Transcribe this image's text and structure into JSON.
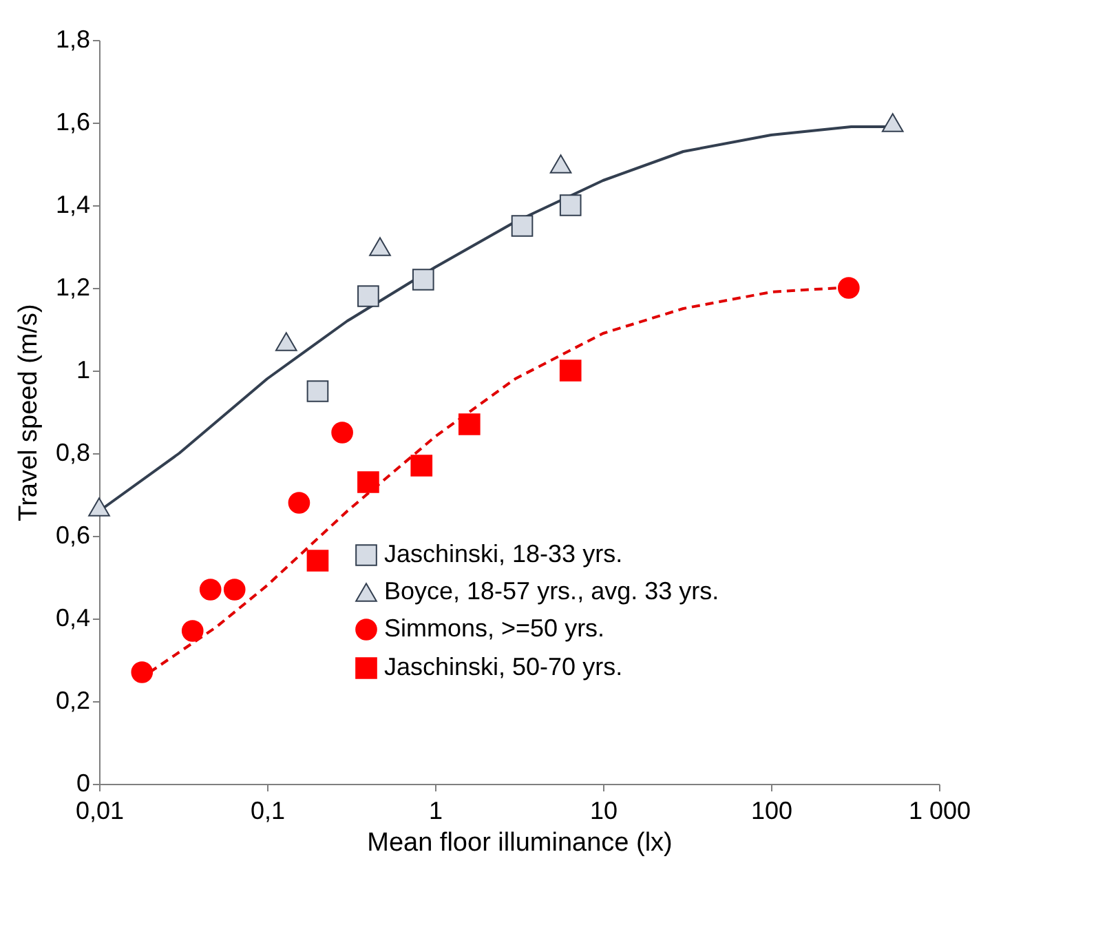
{
  "chart_data": {
    "type": "scatter",
    "xlabel": "Mean floor illuminance (lx)",
    "ylabel": "Travel speed (m/s)",
    "log": "x",
    "xlim": [
      0.01,
      1000
    ],
    "xticks": [
      {
        "value": 0.01,
        "label": "0,01"
      },
      {
        "value": 0.1,
        "label": "0,1"
      },
      1,
      10,
      100,
      {
        "value": 1000,
        "label": "1 000"
      }
    ],
    "ylim": [
      0,
      1.8
    ],
    "yticks": [
      0,
      {
        "value": 0.2,
        "label": "0,2"
      },
      {
        "value": 0.4,
        "label": "0,4"
      },
      {
        "value": 0.6,
        "label": "0,6"
      },
      {
        "value": 0.8,
        "label": "0,8"
      },
      1,
      {
        "value": 1.2,
        "label": "1,2"
      },
      {
        "value": 1.4,
        "label": "1,4"
      },
      {
        "value": 1.6,
        "label": "1,6"
      },
      {
        "value": 1.8,
        "label": "1,8"
      }
    ],
    "grid": false,
    "legend": "bottom",
    "series": [
      {
        "type": "line",
        "color": "#333f50",
        "line_style": "solid",
        "marker": "none",
        "x": [
          0.01,
          0.03,
          0.1,
          0.3,
          1,
          3,
          10,
          30,
          100,
          300,
          550
        ],
        "values": [
          0.66,
          0.8,
          0.98,
          1.12,
          1.25,
          1.36,
          1.46,
          1.53,
          1.57,
          1.59,
          1.59
        ]
      },
      {
        "type": "line",
        "color": "#e00000",
        "line_style": "dashed",
        "marker": "none",
        "x": [
          0.02,
          0.05,
          0.1,
          0.3,
          1,
          3,
          10,
          30,
          100,
          250
        ],
        "values": [
          0.27,
          0.38,
          0.48,
          0.66,
          0.84,
          0.98,
          1.09,
          1.15,
          1.19,
          1.2
        ]
      },
      {
        "name": "Jaschinski, 18-33 yrs.",
        "color": "#d6dce5",
        "marker": "square",
        "x": [
          0.2,
          0.4,
          0.85,
          3.3,
          6.4
        ],
        "values": [
          0.95,
          1.18,
          1.22,
          1.35,
          1.4
        ]
      },
      {
        "name": "Boyce, 18-57 yrs., avg. 33 yrs.",
        "color": "#d6dce5",
        "marker": "triangle",
        "x": [
          0.01,
          0.13,
          0.47,
          5.6,
          530
        ],
        "values": [
          0.67,
          1.07,
          1.3,
          1.5,
          1.6
        ]
      },
      {
        "name": "Simmons, >=50 yrs.",
        "color": "#ff0000",
        "marker": "circle",
        "x": [
          0.018,
          0.036,
          0.046,
          0.064,
          0.155,
          0.28,
          290
        ],
        "values": [
          0.27,
          0.37,
          0.47,
          0.47,
          0.68,
          0.85,
          1.2
        ]
      },
      {
        "name": "Jaschinski, 50-70 yrs.",
        "color": "#ff0000",
        "marker": "square",
        "x": [
          0.2,
          0.4,
          0.83,
          1.6,
          6.4
        ],
        "values": [
          0.54,
          0.73,
          0.77,
          0.87,
          1.0
        ]
      }
    ]
  }
}
